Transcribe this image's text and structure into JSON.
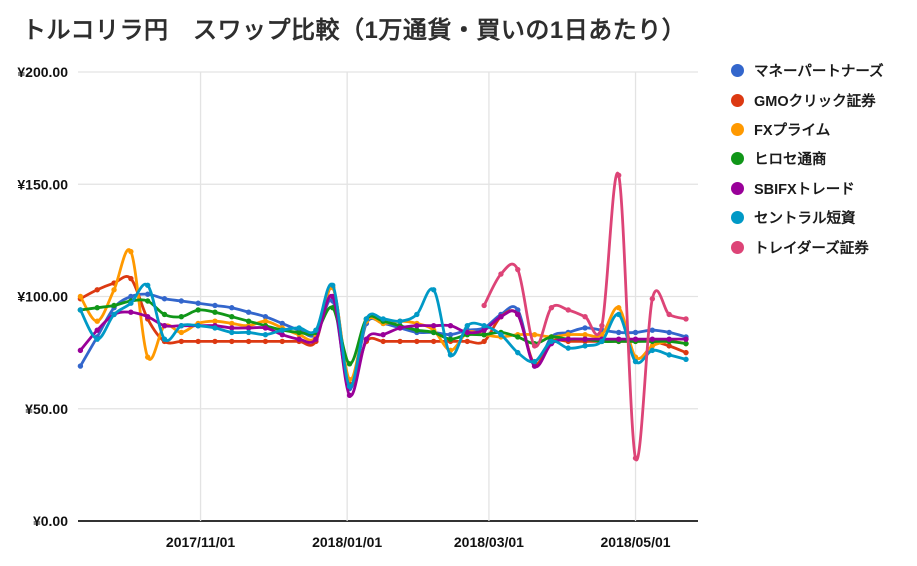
{
  "title": "トルコリラ円　スワップ比較（1万通貨・買いの1日あたり）",
  "colors": {
    "grid": "#e3e3e3",
    "axis": "#333333",
    "title_text": "#2e2e2e",
    "tick_text": "#111111"
  },
  "chart_data": {
    "type": "line",
    "curve": "smooth",
    "grid": true,
    "legend_position": "right",
    "ylim": [
      0,
      200
    ],
    "x_domain": [
      "2017/09/11",
      "2018/05/27"
    ],
    "y_ticks": [
      {
        "value": 0,
        "label": "¥0.00"
      },
      {
        "value": 50,
        "label": "¥50.00"
      },
      {
        "value": 100,
        "label": "¥100.00"
      },
      {
        "value": 150,
        "label": "¥150.00"
      },
      {
        "value": 200,
        "label": "¥200.00"
      }
    ],
    "x_ticks": [
      {
        "date": "2017/11/01",
        "label": "2017/11/01"
      },
      {
        "date": "2018/01/01",
        "label": "2018/01/01"
      },
      {
        "date": "2018/03/01",
        "label": "2018/03/01"
      },
      {
        "date": "2018/05/01",
        "label": "2018/05/01"
      }
    ],
    "x": [
      "2017/09/12",
      "2017/09/19",
      "2017/09/26",
      "2017/10/03",
      "2017/10/10",
      "2017/10/17",
      "2017/10/24",
      "2017/10/31",
      "2017/11/07",
      "2017/11/14",
      "2017/11/21",
      "2017/11/28",
      "2017/12/05",
      "2017/12/12",
      "2017/12/19",
      "2017/12/26",
      "2018/01/02",
      "2018/01/09",
      "2018/01/16",
      "2018/01/23",
      "2018/01/30",
      "2018/02/06",
      "2018/02/13",
      "2018/02/20",
      "2018/02/27",
      "2018/03/06",
      "2018/03/13",
      "2018/03/20",
      "2018/03/27",
      "2018/04/03",
      "2018/04/10",
      "2018/04/17",
      "2018/04/24",
      "2018/05/01",
      "2018/05/08",
      "2018/05/15",
      "2018/05/22"
    ],
    "series": [
      {
        "name": "マネーパートナーズ",
        "color": "#3366CC",
        "values": [
          69,
          82,
          95,
          100,
          101,
          99,
          98,
          97,
          96,
          95,
          93,
          91,
          88,
          85,
          83,
          98,
          59,
          88,
          88,
          86,
          84,
          84,
          83,
          85,
          86,
          92,
          94,
          69,
          82,
          84,
          86,
          85,
          84,
          84,
          85,
          84,
          82
        ]
      },
      {
        "name": "GMOクリック証券",
        "color": "#DC3912",
        "values": [
          99,
          103,
          106,
          108,
          90,
          80,
          80,
          80,
          80,
          80,
          80,
          80,
          80,
          80,
          80,
          104,
          61,
          80,
          80,
          80,
          80,
          80,
          80,
          80,
          80,
          91,
          92,
          70,
          80,
          80,
          80,
          80,
          80,
          80,
          80,
          78,
          75
        ]
      },
      {
        "name": "FXプライム",
        "color": "#FF9900",
        "values": [
          100,
          89,
          103,
          120,
          73,
          87,
          84,
          88,
          89,
          88,
          87,
          89,
          86,
          83,
          82,
          104,
          63,
          89,
          88,
          89,
          88,
          85,
          76,
          84,
          83,
          82,
          83,
          83,
          82,
          83,
          83,
          83,
          95,
          73,
          78,
          80,
          79
        ]
      },
      {
        "name": "ヒロセ通商",
        "color": "#109618",
        "values": [
          94,
          95,
          96,
          98,
          98,
          92,
          91,
          94,
          93,
          91,
          89,
          87,
          85,
          84,
          84,
          95,
          70,
          90,
          89,
          87,
          85,
          84,
          81,
          83,
          83,
          84,
          82,
          79,
          82,
          81,
          81,
          80,
          80,
          80,
          80,
          80,
          79
        ]
      },
      {
        "name": "SBIFXトレード",
        "color": "#990099",
        "values": [
          76,
          85,
          92,
          93,
          91,
          87,
          87,
          87,
          87,
          86,
          86,
          86,
          83,
          81,
          81,
          100,
          56,
          81,
          83,
          86,
          87,
          87,
          87,
          84,
          85,
          91,
          92,
          69,
          79,
          81,
          81,
          81,
          81,
          81,
          81,
          81,
          81
        ]
      },
      {
        "name": "セントラル短資",
        "color": "#0099C6",
        "values": [
          94,
          81,
          92,
          97,
          105,
          81,
          87,
          87,
          86,
          84,
          84,
          83,
          85,
          86,
          85,
          105,
          60,
          90,
          90,
          89,
          92,
          103,
          74,
          87,
          87,
          83,
          75,
          71,
          80,
          77,
          78,
          80,
          92,
          71,
          76,
          74,
          72
        ]
      },
      {
        "name": "トレイダーズ証券",
        "color": "#DD4477",
        "values": [
          null,
          null,
          null,
          null,
          null,
          null,
          null,
          null,
          null,
          null,
          null,
          null,
          null,
          null,
          null,
          null,
          null,
          null,
          null,
          null,
          null,
          null,
          null,
          null,
          96,
          110,
          112,
          78,
          95,
          94,
          91,
          87,
          154,
          28,
          99,
          92,
          90
        ]
      }
    ]
  }
}
